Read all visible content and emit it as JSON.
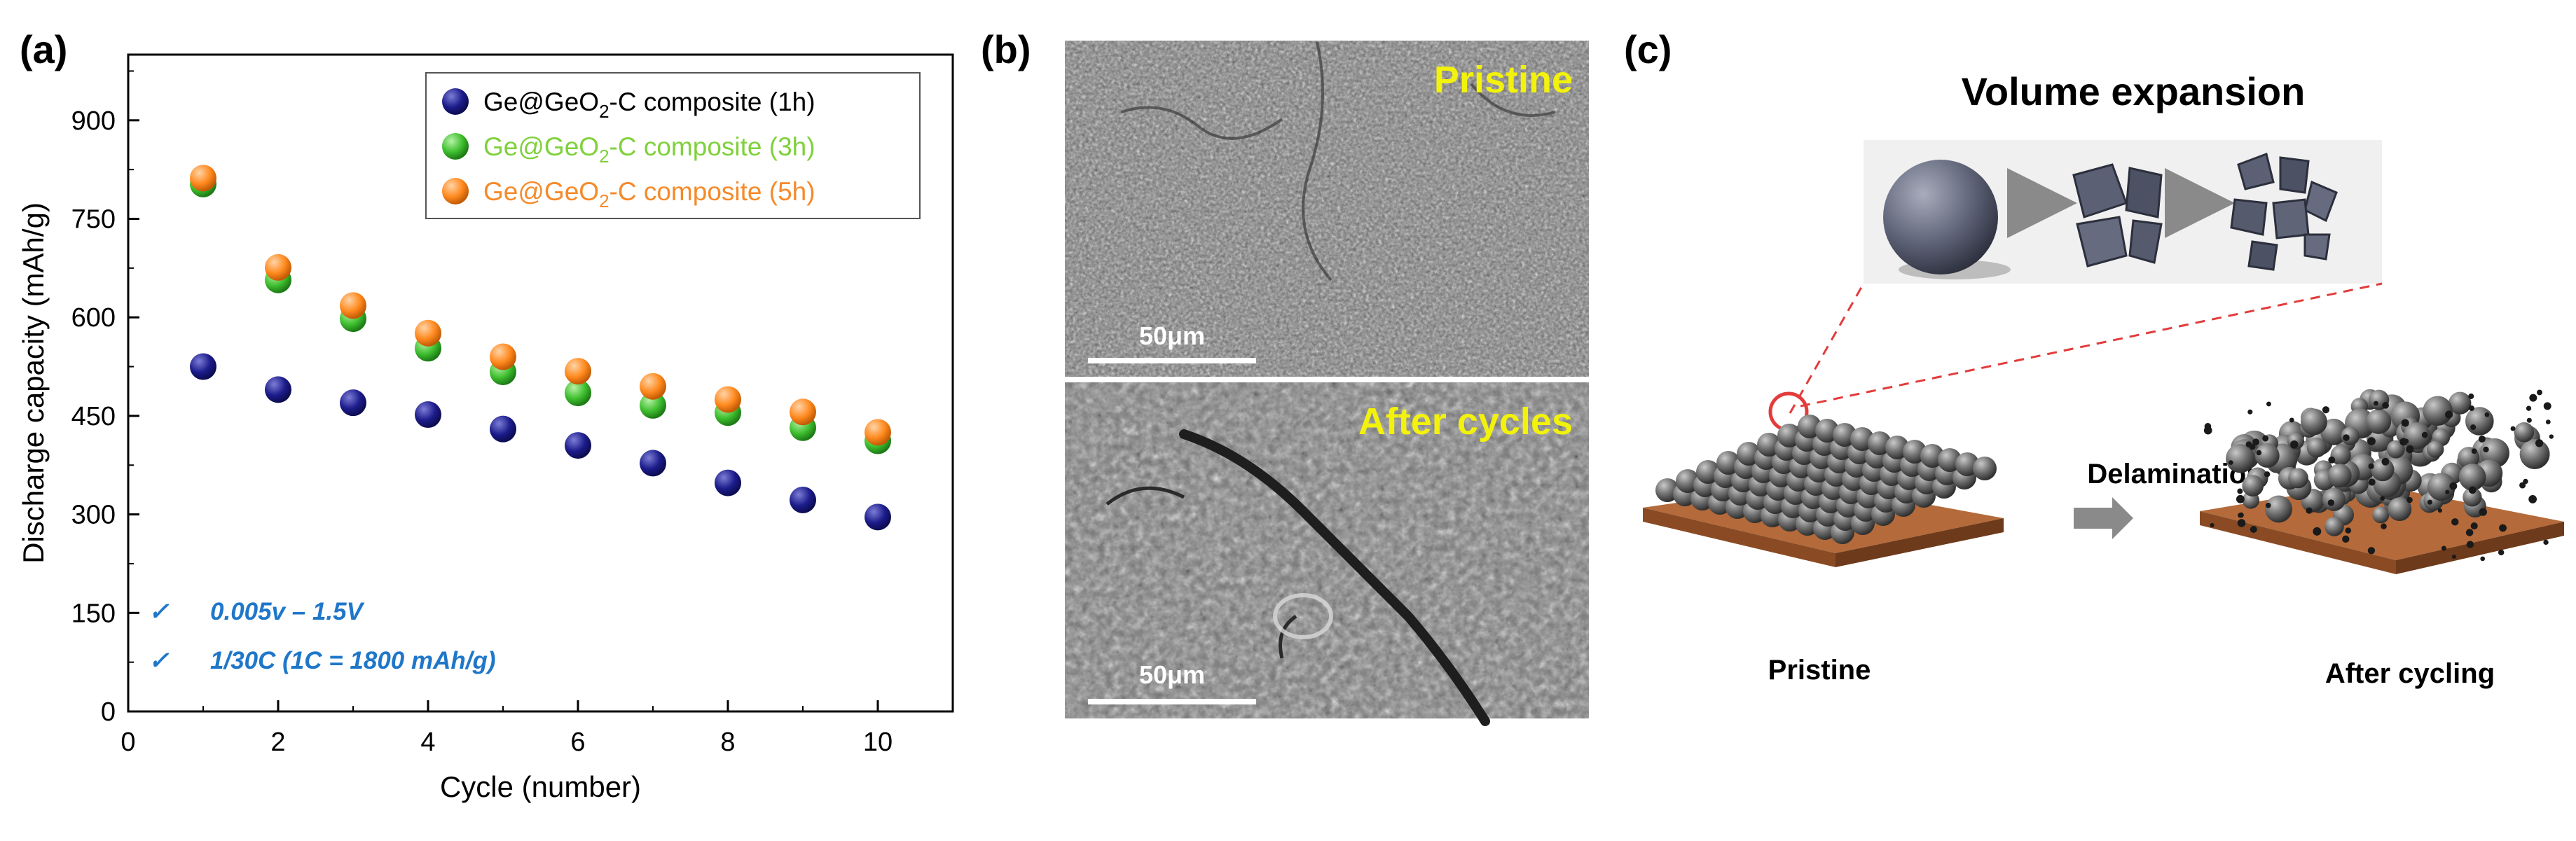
{
  "panel_labels": {
    "a": "(a)",
    "b": "(b)",
    "c": "(c)"
  },
  "chart_data": {
    "type": "scatter",
    "xlabel": "Cycle (number)",
    "ylabel": "Discharge capacity (mAh/g)",
    "xlim": [
      0,
      11
    ],
    "ylim": [
      0,
      1000
    ],
    "xticks": [
      0,
      2,
      4,
      6,
      8,
      10
    ],
    "yticks": [
      0,
      150,
      300,
      450,
      600,
      750,
      900
    ],
    "legend_position": "top-right",
    "series": [
      {
        "name": "Ge@GeO2-C composite (1h)",
        "color": "#1c1c8c",
        "x": [
          1,
          2,
          3,
          4,
          5,
          6,
          7,
          8,
          9,
          10
        ],
        "values": [
          525,
          490,
          470,
          452,
          430,
          405,
          378,
          348,
          322,
          296
        ]
      },
      {
        "name": "Ge@GeO2-C composite (3h)",
        "color": "#3fbf2f",
        "x": [
          1,
          2,
          3,
          4,
          5,
          6,
          7,
          8,
          9,
          10
        ],
        "values": [
          803,
          657,
          598,
          553,
          517,
          485,
          466,
          455,
          432,
          412
        ]
      },
      {
        "name": "Ge@GeO2-C composite (5h)",
        "color": "#ff8a1f",
        "x": [
          1,
          2,
          3,
          4,
          5,
          6,
          7,
          8,
          9,
          10
        ],
        "values": [
          812,
          676,
          618,
          576,
          540,
          518,
          495,
          475,
          456,
          425
        ]
      }
    ],
    "legend": [
      {
        "prefix": "Ge@GeO",
        "sub": "2",
        "suffix": "-C composite (1h)",
        "text_color": "#000000"
      },
      {
        "prefix": "Ge@GeO",
        "sub": "2",
        "suffix": "-C composite (3h)",
        "text_color": "#7fd13b"
      },
      {
        "prefix": "Ge@GeO",
        "sub": "2",
        "suffix": "-C composite (5h)",
        "text_color": "#f58a2a"
      }
    ],
    "annotations": [
      {
        "check": "✓",
        "text": "0.005v – 1.5V"
      },
      {
        "check": "✓",
        "text": "1/30C (1C = 1800 mAh/g)"
      }
    ]
  },
  "sem": {
    "top_label": "Pristine",
    "bottom_label": "After cycles",
    "scale_top": "50μm",
    "scale_bottom": "50μm"
  },
  "diagram": {
    "title": "Volume expansion",
    "arrow_label": "Delamination",
    "left_label": "Pristine",
    "right_label": "After cycling"
  }
}
